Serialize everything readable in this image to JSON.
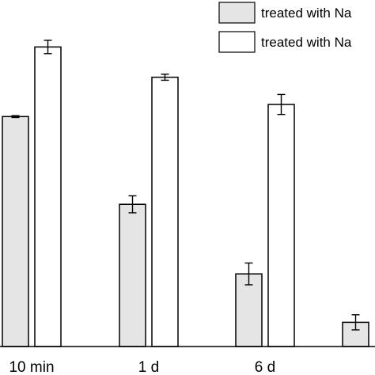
{
  "chart_data": {
    "type": "bar",
    "categories": [
      "10 min",
      "1 d",
      "6 d",
      ""
    ],
    "series": [
      {
        "name": "treated with Na",
        "color": "#e5e5e5",
        "values": [
          0.76,
          0.47,
          0.24,
          0.08
        ],
        "errors": [
          0.003,
          0.028,
          0.036,
          0.025
        ]
      },
      {
        "name": "treated with Na",
        "color": "#ffffff",
        "values": [
          0.99,
          0.89,
          0.8,
          null
        ],
        "errors": [
          0.022,
          0.01,
          0.033,
          null
        ]
      }
    ],
    "ylim": [
      0,
      1.14
    ],
    "legend_position": "top-right",
    "xlabel": "",
    "ylabel": "",
    "title": ""
  }
}
